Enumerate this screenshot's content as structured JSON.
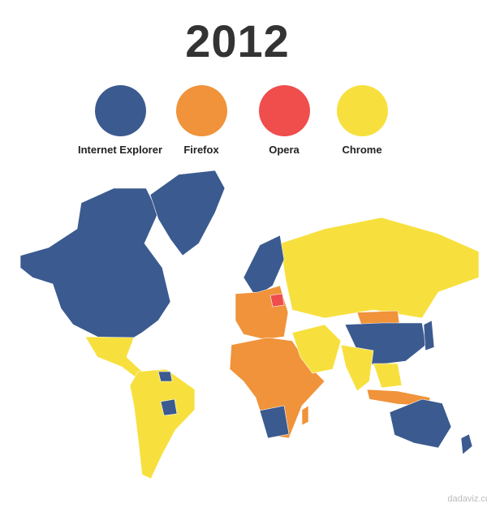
{
  "title": "2012",
  "legend": [
    {
      "label": "Internet Explorer",
      "color": "#3b5a8f"
    },
    {
      "label": "Firefox",
      "color": "#f0933a"
    },
    {
      "label": "Opera",
      "color": "#f04d4d"
    },
    {
      "label": "Chrome",
      "color": "#f7e03e"
    }
  ],
  "watermark": "dadaviz.co"
}
